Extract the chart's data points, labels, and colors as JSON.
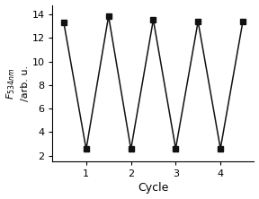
{
  "x": [
    0.5,
    1.0,
    1.5,
    2.0,
    2.5,
    3.0,
    3.5,
    4.0,
    4.5
  ],
  "y": [
    13.3,
    2.55,
    13.85,
    2.55,
    13.55,
    2.6,
    13.4,
    2.6,
    13.4
  ],
  "xlabel": "Cycle",
  "ylabel_line1": "F",
  "ylabel_subscript": "534nm",
  "ylabel_line2": "/arb. u.",
  "xlim": [
    0.25,
    4.75
  ],
  "ylim": [
    1.5,
    14.8
  ],
  "xticks": [
    1,
    2,
    3,
    4
  ],
  "yticks": [
    2,
    4,
    6,
    8,
    10,
    12,
    14
  ],
  "line_color": "#111111",
  "marker": "s",
  "marker_size": 4,
  "line_width": 1.1,
  "background_color": "#ffffff"
}
